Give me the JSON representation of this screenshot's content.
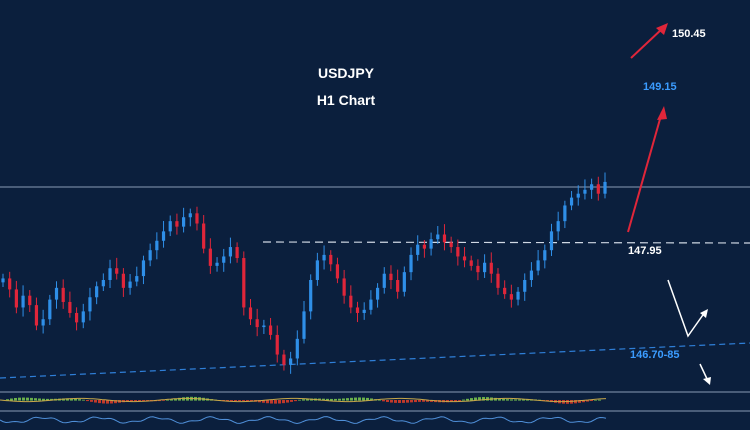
{
  "chart_data": {
    "type": "candlestick",
    "title": "USDJPY",
    "subtitle": "H1 Chart",
    "grid": false,
    "colors": {
      "background": "#0b1f3d",
      "bull": "#2f8fe8",
      "bear": "#e0263a",
      "resistance_line": "#8a9bb5",
      "support_trend": "#2f7fd8",
      "up_arrow": "#e0263a",
      "white_path": "#ffffff",
      "target_text_blue": "#3b9cff",
      "text_white": "#ffffff"
    },
    "levels": [
      {
        "label": "150.45",
        "color": "#ffffff",
        "kind": "target"
      },
      {
        "label": "149.15",
        "color": "#3b9cff",
        "kind": "target"
      },
      {
        "label": "147.95",
        "color": "#ffffff",
        "kind": "resistance"
      },
      {
        "label": "146.70-85",
        "color": "#3b9cff",
        "kind": "support"
      }
    ],
    "closes": [
      147.32,
      147.18,
      146.95,
      147.1,
      146.98,
      146.72,
      146.8,
      147.05,
      147.2,
      147.02,
      146.88,
      146.76,
      146.9,
      147.08,
      147.22,
      147.3,
      147.45,
      147.38,
      147.2,
      147.28,
      147.35,
      147.55,
      147.68,
      147.8,
      147.92,
      148.05,
      147.98,
      148.1,
      148.15,
      148.02,
      147.7,
      147.48,
      147.52,
      147.6,
      147.72,
      147.58,
      146.95,
      146.8,
      146.7,
      146.72,
      146.6,
      146.35,
      146.22,
      146.3,
      146.55,
      146.9,
      147.3,
      147.55,
      147.62,
      147.5,
      147.32,
      147.1,
      146.95,
      146.88,
      146.92,
      147.05,
      147.2,
      147.38,
      147.3,
      147.15,
      147.4,
      147.62,
      147.75,
      147.7,
      147.82,
      147.88,
      147.78,
      147.72,
      147.6,
      147.55,
      147.48,
      147.4,
      147.52,
      147.38,
      147.2,
      147.12,
      147.05,
      147.15,
      147.3,
      147.42,
      147.55,
      147.68,
      147.92,
      148.05,
      148.25,
      148.35,
      148.4,
      148.45,
      148.52,
      148.4,
      148.55
    ]
  }
}
